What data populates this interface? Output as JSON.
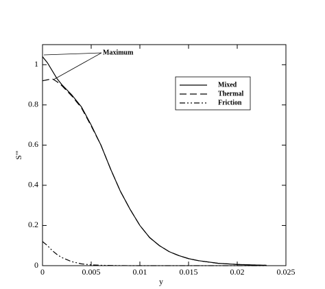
{
  "chart_data": {
    "type": "line",
    "xlabel": "y",
    "ylabel": "S'''",
    "annotation": "Maximum",
    "x": [
      0,
      0.0005,
      0.001,
      0.0015,
      0.002,
      0.003,
      0.004,
      0.005,
      0.006,
      0.007,
      0.008,
      0.009,
      0.01,
      0.011,
      0.012,
      0.013,
      0.014,
      0.015,
      0.016,
      0.018,
      0.02,
      0.022,
      0.023
    ],
    "series": [
      {
        "name": "Mixed",
        "color": "#000000",
        "dash": "solid",
        "values": [
          1.04,
          1.01,
          0.97,
          0.93,
          0.9,
          0.85,
          0.79,
          0.7,
          0.6,
          0.48,
          0.37,
          0.28,
          0.2,
          0.14,
          0.1,
          0.07,
          0.05,
          0.035,
          0.025,
          0.012,
          0.006,
          0.003,
          0.002
        ]
      },
      {
        "name": "Thermal",
        "color": "#000000",
        "dash": "dashed",
        "values": [
          0.92,
          0.925,
          0.93,
          0.915,
          0.895,
          0.845,
          0.785,
          0.695,
          0.6,
          0.48,
          0.37,
          0.28,
          0.2,
          0.14,
          0.1,
          0.07,
          0.05,
          0.035,
          0.025,
          0.012,
          0.006,
          0.003,
          0.002
        ]
      },
      {
        "name": "Friction",
        "color": "#000000",
        "dash": "dashdot",
        "values": [
          0.12,
          0.1,
          0.075,
          0.055,
          0.04,
          0.02,
          0.009,
          0.004,
          0.002,
          0.001,
          0.0005,
          0,
          0,
          0,
          0,
          0,
          0,
          0,
          0,
          0,
          0,
          0,
          0
        ]
      }
    ],
    "xlim": [
      0,
      0.025
    ],
    "xticks": [
      0,
      0.005,
      0.01,
      0.015,
      0.02,
      0.025
    ],
    "ylim": [
      0,
      1.1
    ],
    "yticks": [
      0,
      0.2,
      0.4,
      0.6,
      0.8,
      1
    ],
    "grid": false
  }
}
